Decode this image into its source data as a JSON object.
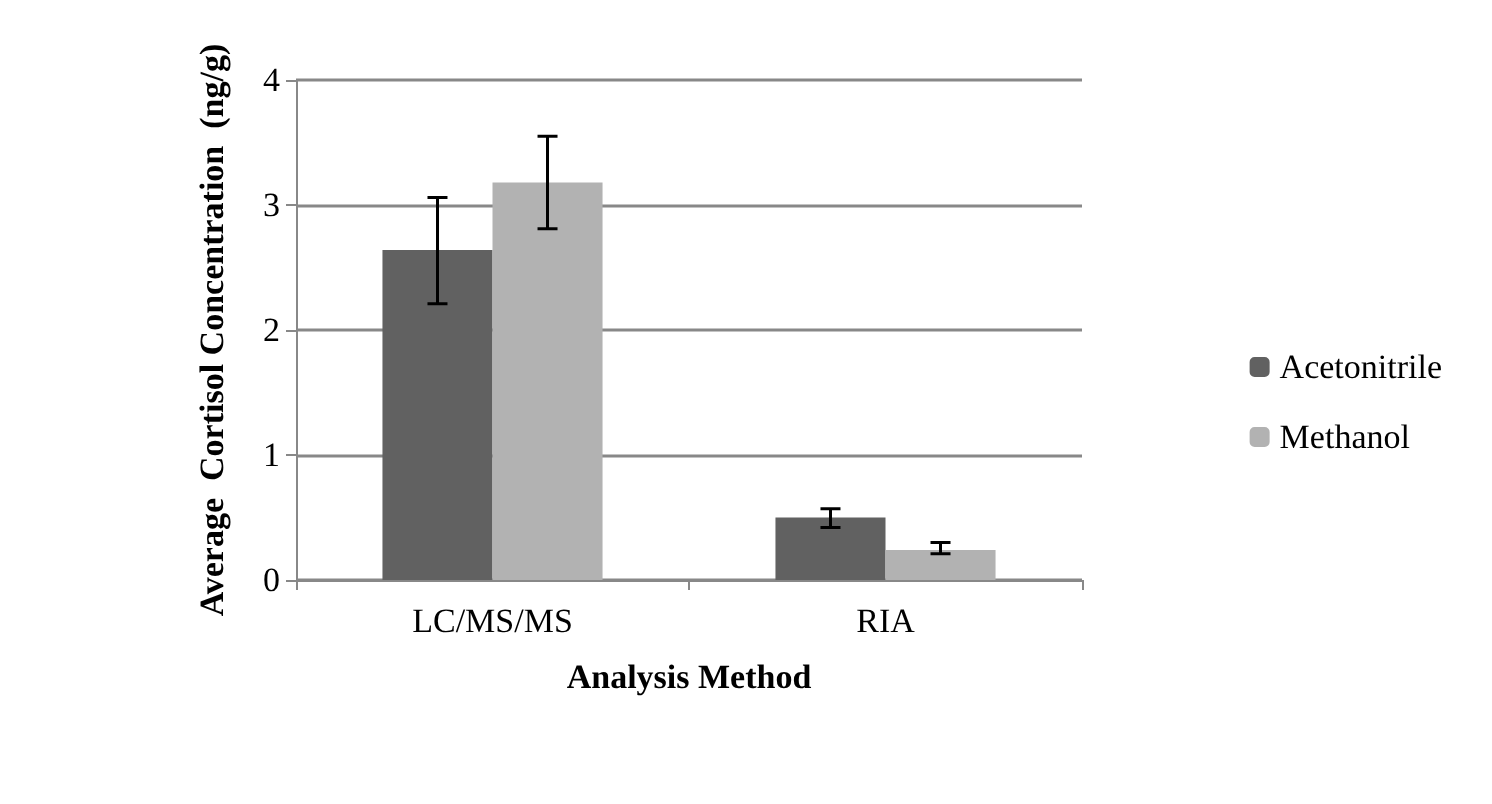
{
  "chart_data": {
    "type": "bar",
    "xlabel": "Analysis Method",
    "ylabel": "Average  Cortisol Concentration  (ng/g)",
    "categories": [
      "LC/MS/MS",
      "RIA"
    ],
    "series": [
      {
        "name": "Acetonitrile",
        "color": "#616161",
        "values": [
          2.64,
          0.5
        ],
        "errors": [
          [
            2.21,
            3.06
          ],
          [
            0.42,
            0.57
          ]
        ]
      },
      {
        "name": "Methanol",
        "color": "#b2b2b2",
        "values": [
          3.18,
          0.24
        ],
        "errors": [
          [
            2.81,
            3.55
          ],
          [
            0.21,
            0.3
          ]
        ]
      }
    ],
    "ylim": [
      0,
      4
    ],
    "yticks": [
      0,
      1,
      2,
      3,
      4
    ],
    "grid": "y",
    "legend": "right"
  }
}
